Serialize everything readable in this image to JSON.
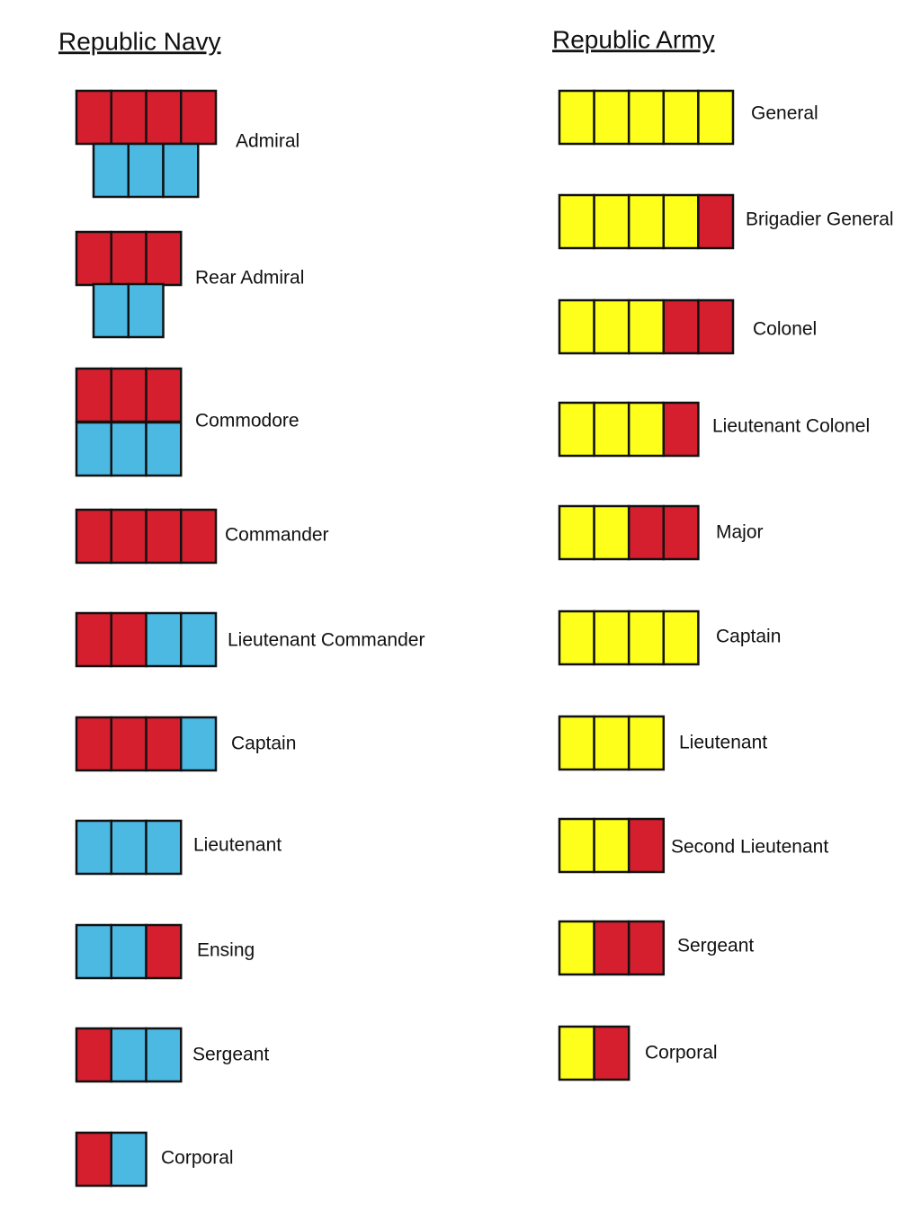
{
  "navy": {
    "title": "Republic Navy",
    "ranks": [
      "Admiral",
      "Rear Admiral",
      "Commodore",
      "Commander",
      "Lieutenant Commander",
      "Captain",
      "Lieutenant",
      "Ensing",
      "Sergeant",
      "Corporal"
    ]
  },
  "army": {
    "title": "Republic Army",
    "ranks": [
      "General",
      "Brigadier General",
      "Colonel",
      "Lieutenant Colonel",
      "Major",
      "Captain",
      "Lieutenant",
      "Second Lieutenant",
      "Sergeant",
      "Corporal"
    ]
  }
}
